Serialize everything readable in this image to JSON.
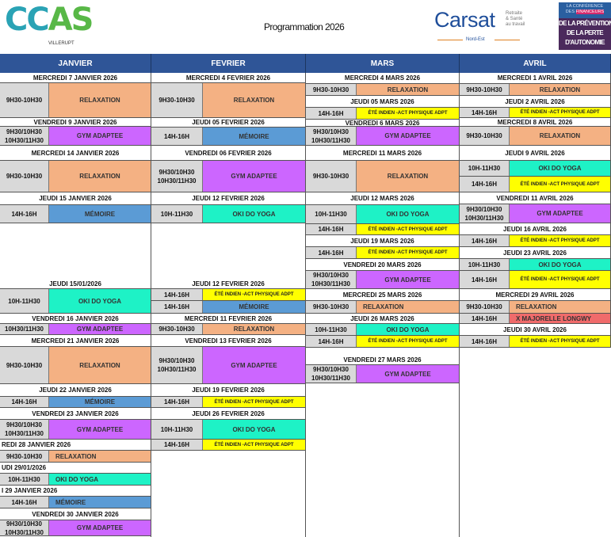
{
  "header": {
    "title": "Programmation 2026",
    "logo_ccas": {
      "word": [
        "CC",
        "AS"
      ],
      "sub": "VILLERUPT"
    },
    "logo_carsat": {
      "word": "Carsat",
      "tag": "Retraite\n& Santé\nau travail",
      "sub": "Nord-Est"
    },
    "logo_conference": {
      "line1": "LA CONFÉRENCE",
      "line2a": "DES ",
      "line2b": "FINANCEURS",
      "main": "DE LA PRÉVENTION\nDE LA PERTE\nD'AUTONOMIE"
    }
  },
  "activity_colors": {
    "relaxation": "#f4b183",
    "gym": "#cc66ff",
    "memoire": "#5b9bd5",
    "yoga": "#1ef2c6",
    "ete": "#ffff00",
    "majorelle": "#f06b6b"
  },
  "month_header_color": "#2f5597",
  "columns": [
    {
      "month": "JANVIER",
      "items": [
        {
          "date": "MERCREDI 7 JANVIER 2026"
        },
        {
          "time": "9H30-10H30",
          "activity": "RELAXATION",
          "type": "relaxation"
        },
        {
          "date": "VENDREDI 9 JANVIER 2026"
        },
        {
          "time": "9H30/10H30\n10H30/11H30",
          "activity": "GYM ADAPTEE",
          "type": "gym"
        },
        {
          "date": "MERCREDI 14 JANVIER 2026"
        },
        {
          "time": "9H30-10H30",
          "activity": "RELAXATION",
          "type": "relaxation"
        },
        {
          "date": "JEUDI 15 JANVIER 2026"
        },
        {
          "time": "14H-16H",
          "activity": "MÉMOIRE",
          "type": "memoire"
        },
        {
          "date": "JEUDI 15/01/2026"
        },
        {
          "time": "10H-11H30",
          "activity": "OKI DO YOGA",
          "type": "yoga"
        },
        {
          "date": "VENDREDI 16 JANVIER 2026"
        },
        {
          "time": "10H30/11H30",
          "activity": "GYM ADAPTEE",
          "type": "gym"
        },
        {
          "date": "MERCREDI 21 JANVIER 2026"
        },
        {
          "time": "9H30-10H30",
          "activity": "RELAXATION",
          "type": "relaxation"
        },
        {
          "date": "JEUDI 22 JANVIER 2026"
        },
        {
          "time": "14H-16H",
          "activity": "MÉMOIRE",
          "type": "memoire"
        },
        {
          "date": "VENDREDI 23 JANVIER 2026"
        },
        {
          "time": "9H30/10H30\n10H30/11H30",
          "activity": "GYM ADAPTEE",
          "type": "gym"
        },
        {
          "date": "REDI 28 JANVIER 2026"
        },
        {
          "time": "9H30-10H30",
          "activity": "RELAXATION",
          "type": "relaxation"
        },
        {
          "date": "UDI 29/01/2026"
        },
        {
          "time": "10H-11H30",
          "activity": "OKI DO YOGA",
          "type": "yoga"
        },
        {
          "date": "I 29 JANVIER 2026"
        },
        {
          "time": "14H-16H",
          "activity": "MÉMOIRE",
          "type": "memoire"
        },
        {
          "date": "VENDREDI 30 JANVIER 2026"
        },
        {
          "time": "9H30/10H30\n10H30/11H30",
          "activity": "GYM ADAPTEE",
          "type": "gym"
        }
      ]
    },
    {
      "month": "FEVRIER",
      "items": [
        {
          "date": "MERCREDI 4 FEVRIER 2026"
        },
        {
          "time": "9H30-10H30",
          "activity": "RELAXATION",
          "type": "relaxation"
        },
        {
          "date": "JEUDI 05 FEVRIER 2026"
        },
        {
          "time": "14H-16H",
          "activity": "MÉMOIRE",
          "type": "memoire"
        },
        {
          "date": "VENDREDI 06 FEVRIER 2026"
        },
        {
          "time": "9H30/10H30\n10H30/11H30",
          "activity": "GYM ADAPTEE",
          "type": "gym"
        },
        {
          "date": "JEUDI 12 FEVRIER 2026"
        },
        {
          "time": "10H-11H30",
          "activity": "OKI DO YOGA",
          "type": "yoga"
        },
        {
          "date": "JEUDI 12 FEVRIER 2026"
        },
        {
          "time": "14H-16H",
          "activity": "ÉTÉ INDIEN -ACT PHYSIQUE ADPT",
          "type": "ete"
        },
        {
          "time": "14H-16H",
          "activity": "MÉMOIRE",
          "type": "memoire"
        },
        {
          "date": "MERCREDI 11 FEVRIER 2026"
        },
        {
          "time": "9H30-10H30",
          "activity": "RELAXATION",
          "type": "relaxation"
        },
        {
          "date": "VENDREDI 13 FEVRIER 2026"
        },
        {
          "time": "9H30/10H30\n10H30/11H30",
          "activity": "GYM ADAPTEE",
          "type": "gym"
        },
        {
          "date": "JEUDI 19 FEVRIER 2026"
        },
        {
          "time": "14H-16H",
          "activity": "ÉTÉ INDIEN -ACT PHYSIQUE ADPT",
          "type": "ete"
        },
        {
          "date": "JEUDI 26 FEVRIER 2026"
        },
        {
          "time": "10H-11H30",
          "activity": "OKI DO YOGA",
          "type": "yoga"
        },
        {
          "time": "14H-16H",
          "activity": "ÉTÉ INDIEN -ACT PHYSIQUE ADPT",
          "type": "ete"
        }
      ]
    },
    {
      "month": "MARS",
      "items": [
        {
          "date": "MERCREDI 4 MARS 2026"
        },
        {
          "time": "9H30-10H30",
          "activity": "RELAXATION",
          "type": "relaxation"
        },
        {
          "date": "JEUDI 05 MARS 2026"
        },
        {
          "time": "14H-16H",
          "activity": "ÉTÉ INDIEN -ACT PHYSIQUE ADPT",
          "type": "ete"
        },
        {
          "date": "VENDREDI 6 MARS 2026"
        },
        {
          "time": "9H30/10H30\n10H30/11H30",
          "activity": "GYM ADAPTEE",
          "type": "gym"
        },
        {
          "date": "MERCREDI 11 MARS 2026"
        },
        {
          "time": "9H30-10H30",
          "activity": "RELAXATION",
          "type": "relaxation"
        },
        {
          "date": "JEUDI 12 MARS 2026"
        },
        {
          "time": "10H-11H30",
          "activity": "OKI DO YOGA",
          "type": "yoga"
        },
        {
          "time": "14H-16H",
          "activity": "ÉTÉ INDIEN -ACT PHYSIQUE ADPT",
          "type": "ete"
        },
        {
          "date": "JEUDI 19 MARS 2026"
        },
        {
          "time": "14H-16H",
          "activity": "ÉTÉ INDIEN -ACT PHYSIQUE ADPT",
          "type": "ete"
        },
        {
          "date": "VENDREDI 20 MARS 2026"
        },
        {
          "time": "9H30/10H30\n10H30/11H30",
          "activity": "GYM ADAPTEE",
          "type": "gym"
        },
        {
          "date": "MERCREDI 25 MARS 2026"
        },
        {
          "time": "9H30-10H30",
          "activity": "RELAXATION",
          "type": "relaxation"
        },
        {
          "date": "JEUDI 26 MARS 2026"
        },
        {
          "time": "10H-11H30",
          "activity": "OKI DO YOGA",
          "type": "yoga"
        },
        {
          "time": "14H-16H",
          "activity": "ÉTÉ INDIEN -ACT PHYSIQUE ADPT",
          "type": "ete"
        },
        {
          "date": "VENDREDI 27 MARS 2026"
        },
        {
          "time": "9H30/10H30\n10H30/11H30",
          "activity": "GYM ADAPTEE",
          "type": "gym"
        }
      ]
    },
    {
      "month": "AVRIL",
      "items": [
        {
          "date": "MERCREDI 1 AVRIL 2026"
        },
        {
          "time": "9H30-10H30",
          "activity": "RELAXATION",
          "type": "relaxation"
        },
        {
          "date": "JEUDI 2 AVRIL 2026"
        },
        {
          "time": "14H-16H",
          "activity": "ÉTÉ INDIEN -ACT PHYSIQUE ADPT",
          "type": "ete"
        },
        {
          "date": "MERCREDI 8 AVRIL 2026"
        },
        {
          "time": "9H30-10H30",
          "activity": "RELAXATION",
          "type": "relaxation"
        },
        {
          "date": "JEUDI 9 AVRIL  2026"
        },
        {
          "time": "10H-11H30",
          "activity": "OKI DO YOGA",
          "type": "yoga"
        },
        {
          "time": "14H-16H",
          "activity": "ÉTÉ INDIEN -ACT PHYSIQUE ADPT",
          "type": "ete"
        },
        {
          "date": "VENDREDI 11 AVRIL 2026"
        },
        {
          "time": "9H30/10H30\n10H30/11H30",
          "activity": "GYM ADAPTEE",
          "type": "gym"
        },
        {
          "date": "JEUDI 16 AVRIL  2026"
        },
        {
          "time": "14H-16H",
          "activity": "ÉTÉ INDIEN -ACT PHYSIQUE ADPT",
          "type": "ete"
        },
        {
          "date": "JEUDI 23 AVRIL  2026"
        },
        {
          "time": "10H-11H30",
          "activity": "OKI DO YOGA",
          "type": "yoga"
        },
        {
          "time": "14H-16H",
          "activity": "ÉTÉ INDIEN -ACT PHYSIQUE ADPT",
          "type": "ete"
        },
        {
          "date": "MERCREDI 29 AVRIL 2026"
        },
        {
          "time": "9H30-10H30",
          "activity": "RELAXATION",
          "type": "relaxation"
        },
        {
          "time": "14H-16H",
          "activity": "X MAJORELLE LONGWY",
          "type": "majorelle"
        },
        {
          "date": "JEUDI 30 AVRIL  2026"
        },
        {
          "time": "14H-16H",
          "activity": "ÉTÉ INDIEN -ACT PHYSIQUE ADPT",
          "type": "ete"
        }
      ]
    }
  ]
}
